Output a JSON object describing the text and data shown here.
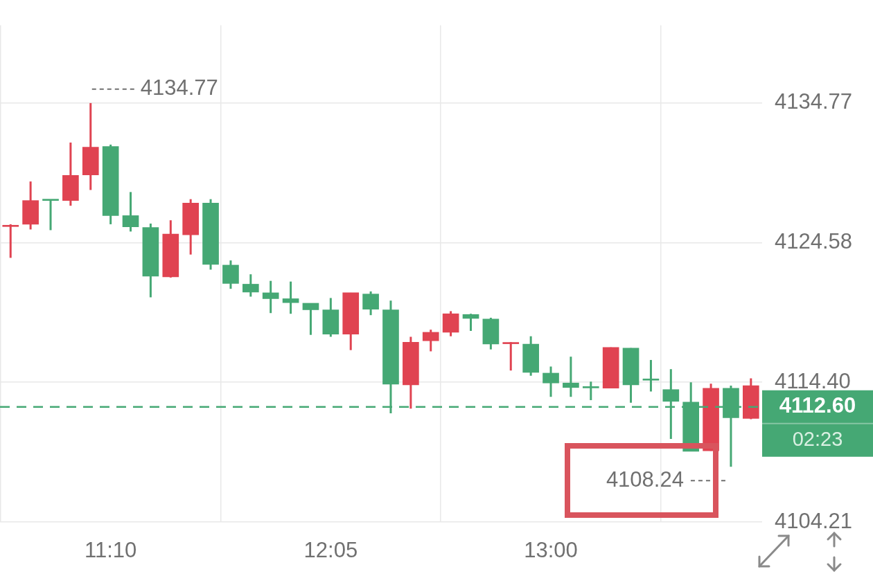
{
  "chart_data": {
    "type": "candlestick",
    "x": [
      10.75,
      10.8333,
      10.9167,
      11.0,
      11.0833,
      11.1667,
      11.25,
      11.3333,
      11.4167,
      11.5,
      11.5833,
      11.6667,
      11.75,
      11.8333,
      11.9167,
      12.0,
      12.0833,
      12.1667,
      12.25,
      12.3333,
      12.4167,
      12.5,
      12.5833,
      12.6667,
      12.75,
      12.8333,
      12.9167,
      13.0,
      13.0833,
      13.1667,
      13.25,
      13.3333,
      13.4167,
      13.5,
      13.5833,
      13.6667,
      13.75,
      13.8333
    ],
    "ohlc": [
      [
        4125.76,
        4125.93,
        4123.48,
        4125.79
      ],
      [
        4125.93,
        4129.05,
        4125.55,
        4127.66
      ],
      [
        4127.71,
        4127.71,
        4125.5,
        4127.66
      ],
      [
        4127.66,
        4131.89,
        4127.28,
        4129.49
      ],
      [
        4129.53,
        4134.77,
        4128.43,
        4131.55
      ],
      [
        4131.6,
        4131.74,
        4125.93,
        4126.56
      ],
      [
        4126.56,
        4128.28,
        4125.4,
        4125.74
      ],
      [
        4125.69,
        4125.98,
        4120.6,
        4122.14
      ],
      [
        4122.09,
        4126.22,
        4122.04,
        4125.21
      ],
      [
        4125.16,
        4127.76,
        4123.72,
        4127.47
      ],
      [
        4127.47,
        4127.76,
        4122.62,
        4123.0
      ],
      [
        4122.95,
        4123.29,
        4121.22,
        4121.61
      ],
      [
        4121.56,
        4122.28,
        4120.65,
        4120.98
      ],
      [
        4120.93,
        4121.8,
        4119.45,
        4120.5
      ],
      [
        4120.5,
        4121.75,
        4119.4,
        4120.21
      ],
      [
        4120.17,
        4120.17,
        4117.86,
        4119.69
      ],
      [
        4119.69,
        4120.55,
        4117.72,
        4117.91
      ],
      [
        4117.91,
        4120.93,
        4116.75,
        4120.93
      ],
      [
        4120.84,
        4121.03,
        4119.3,
        4119.73
      ],
      [
        4119.69,
        4120.36,
        4112.14,
        4114.26
      ],
      [
        4114.21,
        4117.72,
        4112.48,
        4117.33
      ],
      [
        4117.43,
        4118.24,
        4116.66,
        4118.05
      ],
      [
        4118.05,
        4119.59,
        4117.76,
        4119.4
      ],
      [
        4119.35,
        4119.4,
        4118.15,
        4119.06
      ],
      [
        4119.01,
        4119.11,
        4116.8,
        4117.19
      ],
      [
        4117.21,
        4117.33,
        4115.26,
        4117.23
      ],
      [
        4117.19,
        4117.76,
        4114.88,
        4115.12
      ],
      [
        4115.07,
        4115.55,
        4113.34,
        4114.35
      ],
      [
        4114.35,
        4116.27,
        4113.34,
        4114.02
      ],
      [
        4114.02,
        4114.45,
        4113.1,
        4113.99
      ],
      [
        4113.97,
        4116.95,
        4113.97,
        4116.95
      ],
      [
        4116.9,
        4116.9,
        4112.91,
        4114.21
      ],
      [
        4114.6,
        4116.03,
        4113.73,
        4114.55
      ],
      [
        4113.87,
        4115.36,
        4110.27,
        4113.01
      ],
      [
        4112.96,
        4114.4,
        4109.36,
        4109.36
      ],
      [
        4109.4,
        4114.3,
        4109.4,
        4113.97
      ],
      [
        4113.97,
        4114.16,
        4108.24,
        4111.81
      ],
      [
        4111.76,
        4114.69,
        4111.71,
        4114.16
      ]
    ],
    "colors": [
      "#e04351",
      "#e04351",
      "#45a874",
      "#e04351",
      "#e04351",
      "#45a874",
      "#45a874",
      "#45a874",
      "#e04351",
      "#e04351",
      "#45a874",
      "#45a874",
      "#45a874",
      "#45a874",
      "#45a874",
      "#45a874",
      "#45a874",
      "#e04351",
      "#45a874",
      "#45a874",
      "#e04351",
      "#e04351",
      "#e04351",
      "#45a874",
      "#45a874",
      "#e04351",
      "#45a874",
      "#45a874",
      "#45a874",
      "#45a874",
      "#e04351",
      "#45a874",
      "#45a874",
      "#45a874",
      "#45a874",
      "#e04351",
      "#45a874",
      "#e04351"
    ],
    "xlim": [
      10.706,
      13.88
    ],
    "xticks": [
      {
        "value": 11.1667,
        "label": "11:10"
      },
      {
        "value": 12.0833,
        "label": "12:05"
      },
      {
        "value": 13.0,
        "label": "13:00"
      }
    ],
    "ylim": [
      4104.21,
      4140.44
    ],
    "yticks": [
      4104.21,
      {
        "value": 4114.4,
        "label": "4114.40"
      },
      4124.58,
      4134.77
    ],
    "grid": true,
    "ref_lines": [
      {
        "axis": "y",
        "value": 4112.6,
        "label": "4112.60",
        "color": "#45a874",
        "line_style": "dashed"
      }
    ],
    "annotations": [
      "4134.77",
      "4108.24",
      "02:23"
    ]
  }
}
